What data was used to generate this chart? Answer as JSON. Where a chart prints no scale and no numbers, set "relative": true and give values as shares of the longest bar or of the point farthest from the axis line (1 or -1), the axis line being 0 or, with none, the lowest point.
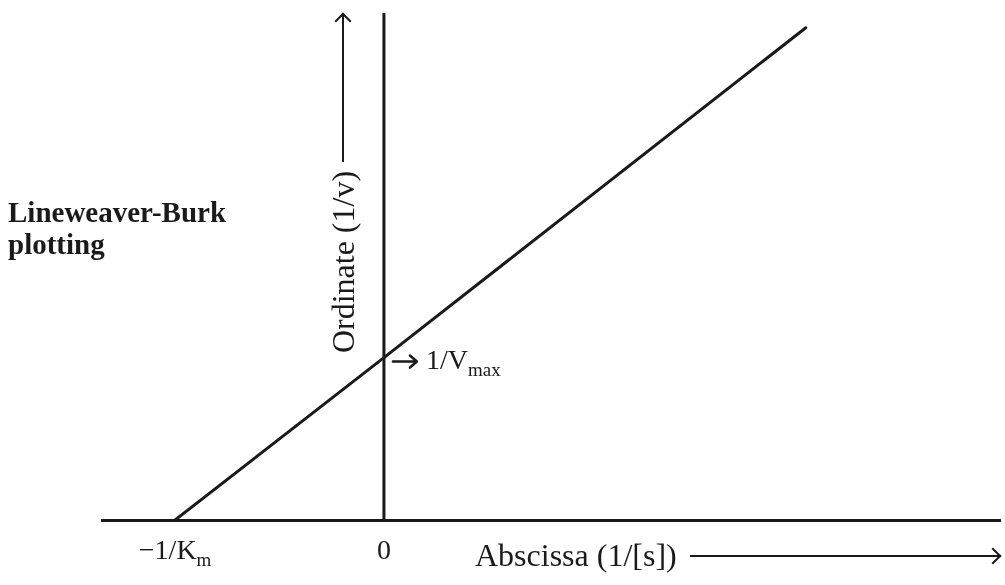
{
  "chart_data": {
    "type": "line",
    "title": "Lineweaver-Burk plotting",
    "xlabel": "Abscissa (1/[s])",
    "ylabel": "Ordinate (1/v)",
    "relative": true,
    "x": [
      -1,
      0,
      2.02
    ],
    "series": [
      {
        "color": "#1a1a1a",
        "values": [
          0,
          0.33,
          1
        ]
      }
    ],
    "xlim": [
      -1.35,
      2.95
    ],
    "xticks": [
      {
        "value": -1,
        "label": "−1/K$_{m}$"
      },
      0
    ],
    "ref_lines": [
      {
        "axis": "x",
        "value": 0,
        "color": "#1a1a1a"
      }
    ],
    "annotations": [
      {
        "text": "1/V$_{max}$",
        "x": 0,
        "y": 0.33
      }
    ],
    "grid": false,
    "legend": false,
    "marker": "none"
  }
}
